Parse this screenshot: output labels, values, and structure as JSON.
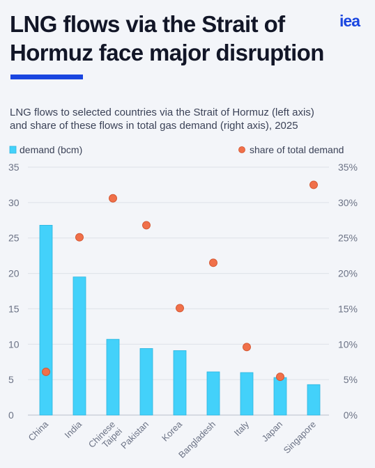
{
  "header": {
    "title_line1": "LNG flows via the Strait of",
    "title_line2": "Hormuz face major disruption",
    "logo": "iea",
    "subtitle_line1": "LNG flows to selected countries via the Strait of Hormuz (left axis)",
    "subtitle_line2": "and share of these flows in total gas demand (right axis), 2025"
  },
  "colors": {
    "bar": "#43d1fa",
    "bar_stroke": "#2db5df",
    "dot": "#f0704a",
    "dot_stroke": "#d2532d",
    "grid": "#dde1e8",
    "axis_text": "#6b7285",
    "accent": "#1a46e0"
  },
  "chart_data": {
    "type": "bar",
    "categories": [
      "China",
      "India",
      "Chinese Taipei",
      "Pakistan",
      "Korea",
      "Bangladesh",
      "Italy",
      "Japan",
      "Singapore"
    ],
    "category_label_lines": [
      [
        "China"
      ],
      [
        "India"
      ],
      [
        "Chinese",
        "Taipei"
      ],
      [
        "Pakistan"
      ],
      [
        "Korea"
      ],
      [
        "Bangladesh"
      ],
      [
        "Italy"
      ],
      [
        "Japan"
      ],
      [
        "Singapore"
      ]
    ],
    "series": [
      {
        "name": "demand (bcm)",
        "type": "bar",
        "axis": "left",
        "values": [
          26.8,
          19.5,
          10.7,
          9.4,
          9.1,
          6.1,
          6.0,
          5.3,
          4.3
        ]
      },
      {
        "name": "share of total demand",
        "type": "scatter",
        "axis": "right",
        "values": [
          6.1,
          25.1,
          30.6,
          26.8,
          15.1,
          21.5,
          9.6,
          5.4,
          32.5
        ]
      }
    ],
    "y_left": {
      "min": 0,
      "max": 35,
      "ticks": [
        "0",
        "5",
        "10",
        "15",
        "20",
        "25",
        "30",
        "35"
      ]
    },
    "y_right": {
      "min": 0,
      "max": 35,
      "ticks": [
        "0%",
        "5%",
        "10%",
        "15%",
        "20%",
        "25%",
        "30%",
        "35%"
      ]
    },
    "legend_position": "top",
    "grid": true
  }
}
